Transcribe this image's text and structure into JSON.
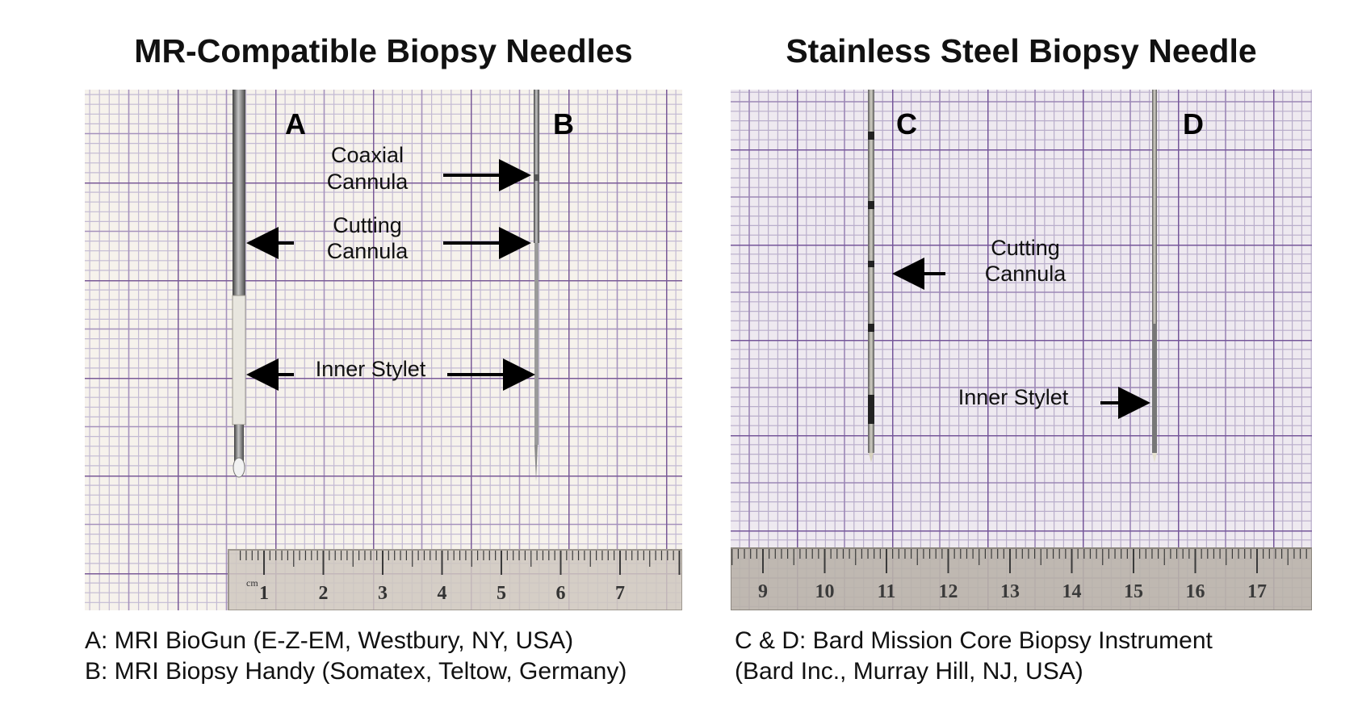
{
  "figure": {
    "left_title": "MR-Compatible Biopsy Needles",
    "right_title": "Stainless Steel Biopsy Needle",
    "left_panel": {
      "labels": {
        "a": "A",
        "b": "B"
      },
      "coaxial_cannula": [
        "Coaxial",
        "Cannula"
      ],
      "cutting_cannula": [
        "Cutting",
        "Cannula"
      ],
      "inner_stylet": "Inner Stylet",
      "ruler_unit": "cm",
      "ruler_numbers": [
        "1",
        "2",
        "3",
        "4",
        "5",
        "6",
        "7"
      ]
    },
    "right_panel": {
      "labels": {
        "c": "C",
        "d": "D"
      },
      "cutting_cannula": [
        "Cutting",
        "Cannula"
      ],
      "inner_stylet": "Inner Stylet",
      "ruler_numbers": [
        "9",
        "10",
        "11",
        "12",
        "13",
        "14",
        "15",
        "16",
        "17"
      ]
    },
    "captions": {
      "left": [
        "A: MRI BioGun (E-Z-EM, Westbury, NY, USA)",
        "B: MRI Biopsy Handy (Somatex, Teltow, Germany)"
      ],
      "right": [
        "C & D: Bard Mission Core Biopsy Instrument",
        "(Bard Inc., Murray Hill, NJ, USA)"
      ]
    },
    "colors": {
      "paper": "#f6f2ec",
      "grid_minor": "#bfb6cf",
      "grid_major": "#7a5b98",
      "ruler": "#cfc8c0",
      "steel": "#8c8c8c"
    }
  }
}
